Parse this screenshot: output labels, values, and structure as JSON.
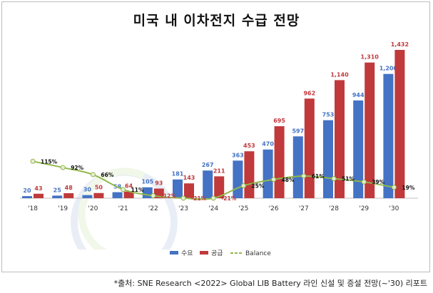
{
  "chart_data": {
    "type": "bar",
    "title": "미국 내 이차전지 수급 전망",
    "categories": [
      "'18",
      "'19",
      "'20",
      "'21",
      "'22",
      "'23",
      "'24",
      "'25",
      "'26",
      "'27",
      "'28",
      "'29",
      "'30"
    ],
    "series": [
      {
        "name": "수요",
        "type": "bar",
        "color": "#4472c4",
        "values": [
          20,
          25,
          30,
          58,
          105,
          181,
          267,
          363,
          470,
          597,
          753,
          944,
          1200
        ],
        "labels": [
          "20",
          "25",
          "30",
          "58",
          "105",
          "181",
          "267",
          "363",
          "470",
          "597",
          "753",
          "944",
          "1,200"
        ]
      },
      {
        "name": "공급",
        "type": "bar",
        "color": "#c0393b",
        "values": [
          43,
          48,
          50,
          64,
          93,
          143,
          211,
          453,
          695,
          962,
          1140,
          1310,
          1432
        ],
        "labels": [
          "43",
          "48",
          "50",
          "64",
          "93",
          "143",
          "211",
          "453",
          "695",
          "962",
          "1,140",
          "1,310",
          "1,432"
        ]
      },
      {
        "name": "Balance",
        "type": "line",
        "color": "#92b84a",
        "values": [
          115,
          92,
          66,
          11,
          -12,
          -21,
          -21,
          25,
          48,
          61,
          51,
          39,
          19
        ],
        "labels": [
          "115%",
          "92%",
          "66%",
          "11%",
          "-12%",
          "-21%",
          "-21%",
          "25%",
          "48%",
          "61%",
          "51%",
          "39%",
          "19%"
        ]
      }
    ],
    "legend_position": "bottom",
    "grid": false
  },
  "source": "*출처:  SNE Research <2022> Global LIB Battery 라인 신설 및 증설 전망(~'30) 리포트",
  "watermark": "SNE Research"
}
